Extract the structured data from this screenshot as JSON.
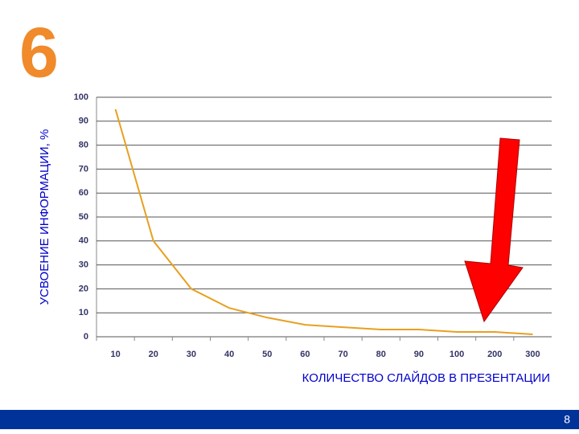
{
  "heading": "6",
  "page_number": "8",
  "chart_data": {
    "type": "line",
    "y_label": "УСВОЕНИЕ ИНФОРМАЦИИ, %",
    "x_label": "КОЛИЧЕСТВО СЛАЙДОВ В ПРЕЗЕНТАЦИИ",
    "categories": [
      "10",
      "20",
      "30",
      "40",
      "50",
      "60",
      "70",
      "80",
      "90",
      "100",
      "200",
      "300"
    ],
    "values": [
      95,
      40,
      20,
      12,
      8,
      5,
      4,
      3,
      3,
      2,
      2,
      1
    ],
    "color": "#e8a020",
    "ylim": [
      0,
      100
    ],
    "yticks": [
      0,
      10,
      20,
      30,
      40,
      50,
      60,
      70,
      80,
      90,
      100
    ],
    "grid": true
  }
}
